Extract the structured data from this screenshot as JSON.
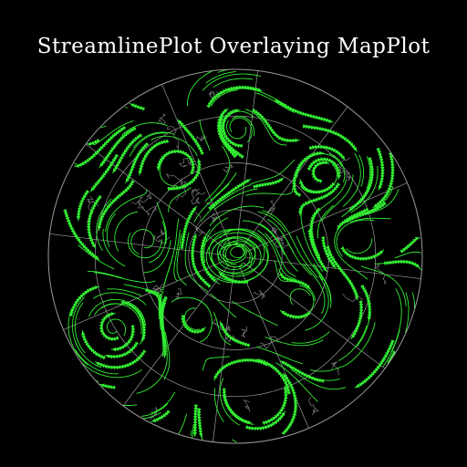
{
  "title": "StreamlinePlot Overlaying MapPlot",
  "colors": {
    "background": "#000000",
    "title": "#ffffff",
    "streamline": "#33ee33",
    "grid": "#9a9a9a",
    "coastline": "#8a8a8a"
  },
  "map": {
    "projection": "polar-stereographic",
    "hemisphere": "north",
    "meridian_lines": 12,
    "latitude_circles": 3
  }
}
